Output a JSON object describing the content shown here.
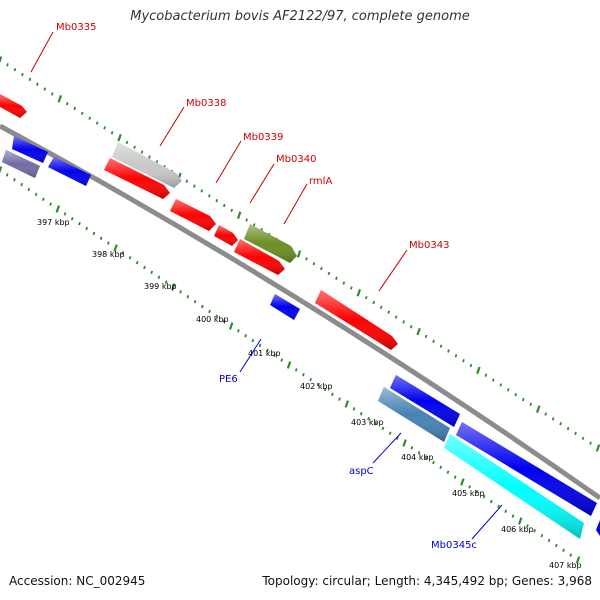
{
  "title": "Mycobacterium bovis AF2122/97, complete genome",
  "footer": {
    "accession": "Accession: NC_002945",
    "summary": "Topology: circular; Length: 4,345,492 bp; Genes: 3,968"
  },
  "colors": {
    "backbone": "#8c8c8c",
    "tick": "#2e8b2e",
    "forward_label": "#cc0000",
    "reverse_label": "#0000cc"
  },
  "scale_labels": [
    "397 kbp",
    "398 kbp",
    "399 kbp",
    "400 kbp",
    "401 kbp",
    "402 kbp",
    "403 kbp",
    "404 kbp",
    "405 kbp",
    "406 kbp",
    "407 kbp"
  ],
  "forward_genes": [
    {
      "name": "Mb0335",
      "color": "#ff0000"
    },
    {
      "name": "Mb0338",
      "color": "#c8c8c8"
    },
    {
      "name": "Mb0339",
      "color": "#ff0000"
    },
    {
      "name": "Mb0340",
      "color": "#ff0000"
    },
    {
      "name": "rmlA",
      "color": "#6b8e23"
    },
    {
      "name": "Mb0343",
      "color": "#ff0000"
    }
  ],
  "reverse_genes": [
    {
      "name": "PE6",
      "color": "#0000ee"
    },
    {
      "name": "aspC",
      "color": "#4682b4"
    },
    {
      "name": "Mb0345c",
      "color": "#00ffff"
    }
  ]
}
